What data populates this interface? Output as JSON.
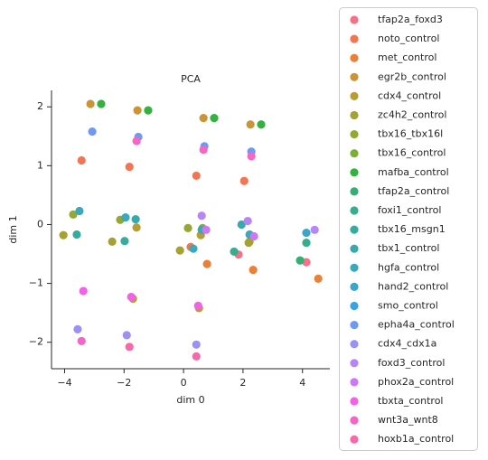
{
  "chart_data": {
    "type": "scatter",
    "title": "PCA",
    "xlabel": "dim 0",
    "ylabel": "dim 1",
    "xlim": [
      -4.44,
      4.92
    ],
    "ylim": [
      -2.45,
      2.28
    ],
    "xticks": [
      {
        "value": -4,
        "label": "−4"
      },
      {
        "value": -2,
        "label": "−2"
      },
      0,
      2,
      4
    ],
    "yticks": [
      {
        "value": -2,
        "label": "−2"
      },
      {
        "value": -1,
        "label": "−1"
      },
      0,
      1,
      2
    ],
    "series": [
      {
        "name": "tfap2a_foxd3",
        "color": "#f57088",
        "x": [
          1.85,
          4.13
        ],
        "y": [
          -0.51,
          -0.64
        ]
      },
      {
        "name": "noto_control",
        "color": "#f37652",
        "x": [
          -3.43,
          -1.82,
          0.43,
          2.04,
          0.24
        ],
        "y": [
          1.09,
          0.98,
          0.83,
          0.74,
          -0.38
        ]
      },
      {
        "name": "met_control",
        "color": "#e8823a",
        "x": [
          0.79,
          2.34,
          4.53
        ],
        "y": [
          -0.67,
          -0.77,
          -0.92
        ]
      },
      {
        "name": "egr2b_control",
        "color": "#c99537",
        "x": [
          -3.13,
          -1.55,
          0.67,
          2.25
        ],
        "y": [
          2.05,
          1.94,
          1.81,
          1.7
        ]
      },
      {
        "name": "cdx4_control",
        "color": "#b79d32",
        "x": [
          -1.58,
          0.58,
          2.22,
          -1.7,
          0.52
        ],
        "y": [
          -0.05,
          -0.18,
          -0.29,
          -1.26,
          -1.42
        ]
      },
      {
        "name": "zc4h2_control",
        "color": "#a6a231",
        "x": [
          -4.04,
          -2.4,
          -0.12,
          2.19
        ],
        "y": [
          -0.18,
          -0.29,
          -0.44,
          -0.31
        ]
      },
      {
        "name": "tbx16_tbx16l",
        "color": "#94a832",
        "x": [
          -3.71,
          -2.13,
          0.15,
          0.64
        ],
        "y": [
          0.17,
          0.08,
          -0.06,
          -0.06
        ]
      },
      {
        "name": "tbx16_control",
        "color": "#7eae32",
        "x": [],
        "y": []
      },
      {
        "name": "mafba_control",
        "color": "#33b23d",
        "x": [
          -2.77,
          -1.19,
          1.03,
          2.61
        ],
        "y": [
          2.05,
          1.94,
          1.81,
          1.7
        ]
      },
      {
        "name": "tfap2a_control",
        "color": "#35ae72",
        "x": [
          3.92
        ],
        "y": [
          -0.61
        ]
      },
      {
        "name": "foxi1_control",
        "color": "#36ad8c",
        "x": [
          1.7,
          4.13
        ],
        "y": [
          -0.46,
          -0.31
        ]
      },
      {
        "name": "tbx16_msgn1",
        "color": "#37ab9d",
        "x": [
          -3.59,
          -1.98
        ],
        "y": [
          -0.17,
          -0.28
        ]
      },
      {
        "name": "tbx1_control",
        "color": "#38aaac",
        "x": [
          -1.61,
          0.61,
          1.95
        ],
        "y": [
          0.09,
          -0.09,
          0
        ]
      },
      {
        "name": "hgfa_control",
        "color": "#39a9bb",
        "x": [
          -3.5,
          -1.95,
          0.33,
          2.22
        ],
        "y": [
          0.23,
          0.12,
          -0.41,
          -0.17
        ]
      },
      {
        "name": "hand2_control",
        "color": "#3aa6cc",
        "x": [
          4.13
        ],
        "y": [
          -0.14
        ]
      },
      {
        "name": "smo_control",
        "color": "#3ca3e0",
        "x": [],
        "y": []
      },
      {
        "name": "epha4a_control",
        "color": "#6e9af4",
        "x": [
          -3.07,
          -1.52,
          0.7,
          2.28
        ],
        "y": [
          1.58,
          1.49,
          1.33,
          1.24
        ]
      },
      {
        "name": "cdx4_cdx1a",
        "color": "#9b90f4",
        "x": [
          -3.56,
          -1.91,
          0.43
        ],
        "y": [
          -1.78,
          -1.88,
          -2.04
        ]
      },
      {
        "name": "foxd3_control",
        "color": "#b586f4",
        "x": [
          0.61,
          2.16,
          4.41
        ],
        "y": [
          0.15,
          0.06,
          -0.09
        ]
      },
      {
        "name": "phox2a_control",
        "color": "#cd78f4",
        "x": [
          0.76,
          2.37
        ],
        "y": [
          -0.09,
          -0.2
        ]
      },
      {
        "name": "tbxta_control",
        "color": "#f262e7",
        "x": [
          -3.37,
          -1.76,
          0.49
        ],
        "y": [
          -1.13,
          -1.23,
          -1.38
        ]
      },
      {
        "name": "wnt3a_wnt8",
        "color": "#f566c7",
        "x": [
          -1.58,
          0.67,
          2.28,
          -3.43
        ],
        "y": [
          1.42,
          1.27,
          1.16,
          -1.98
        ]
      },
      {
        "name": "hoxb1a_control",
        "color": "#f56aab",
        "x": [
          -1.82,
          0.43
        ],
        "y": [
          -2.08,
          -2.24
        ]
      }
    ]
  }
}
